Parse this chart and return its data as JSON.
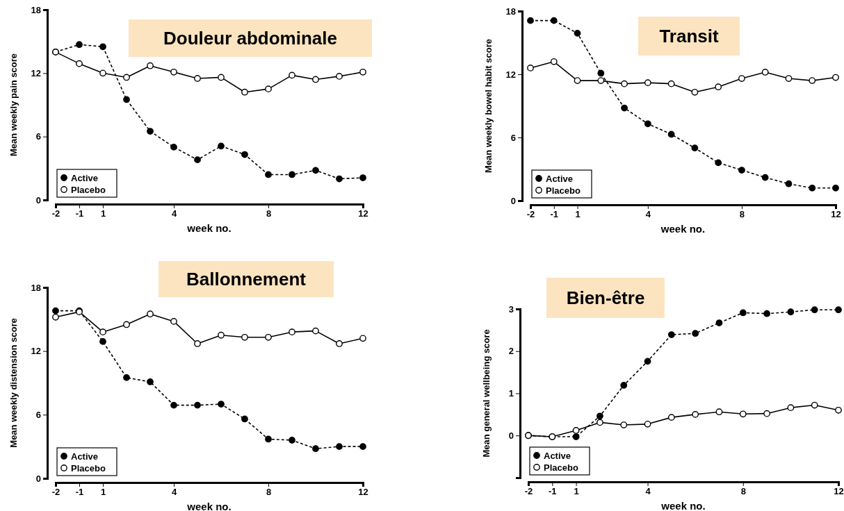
{
  "chart_data": [
    {
      "type": "line",
      "title": "Douleur abdominale",
      "xlabel": "week no.",
      "ylabel": "Mean weekly pain score",
      "categories": [
        "-2",
        "-1",
        "1",
        null,
        null,
        "4",
        null,
        null,
        null,
        "8",
        null,
        null,
        null,
        "12"
      ],
      "ylim": [
        0,
        18
      ],
      "yticks": [
        0,
        6,
        12,
        18
      ],
      "legend": "bottom left",
      "marker": "circle",
      "grid": false,
      "series": [
        {
          "name": "Active",
          "color": "#000000",
          "line_style": "dashed",
          "values": [
            14.0,
            14.7,
            14.5,
            9.5,
            6.5,
            5.0,
            3.8,
            5.1,
            4.3,
            2.4,
            2.4,
            2.8,
            2.0,
            2.1
          ]
        },
        {
          "name": "Placebo",
          "color": "#000000",
          "line_style": "solid",
          "values": [
            14.0,
            12.9,
            12.0,
            11.6,
            12.7,
            12.1,
            11.5,
            11.6,
            10.2,
            10.5,
            11.8,
            11.4,
            11.7,
            12.1
          ]
        }
      ]
    },
    {
      "type": "line",
      "title": "Transit",
      "xlabel": "week no.",
      "ylabel": "Mean weekly bowel habit score",
      "categories": [
        "-2",
        "-1",
        "1",
        null,
        null,
        "4",
        null,
        null,
        null,
        "8",
        null,
        null,
        null,
        "12"
      ],
      "ylim": [
        0,
        18
      ],
      "yticks": [
        0,
        6,
        12,
        18
      ],
      "legend": "bottom left",
      "marker": "circle",
      "grid": false,
      "series": [
        {
          "name": "Active",
          "color": "#000000",
          "line_style": "dashed",
          "values": [
            17.1,
            17.1,
            15.9,
            12.1,
            8.8,
            7.3,
            6.3,
            5.0,
            3.6,
            2.9,
            2.2,
            1.6,
            1.2,
            1.2
          ]
        },
        {
          "name": "Placebo",
          "color": "#000000",
          "line_style": "solid",
          "values": [
            12.6,
            13.2,
            11.4,
            11.4,
            11.1,
            11.2,
            11.1,
            10.3,
            10.8,
            11.6,
            12.2,
            11.6,
            11.4,
            11.7
          ]
        }
      ]
    },
    {
      "type": "line",
      "title": "Ballonnement",
      "xlabel": "week no.",
      "ylabel": "Mean weekly distension score",
      "categories": [
        "-2",
        "-1",
        "1",
        null,
        null,
        "4",
        null,
        null,
        null,
        "8",
        null,
        null,
        null,
        "12"
      ],
      "ylim": [
        0,
        18
      ],
      "yticks": [
        0,
        6,
        12,
        18
      ],
      "legend": "bottom left",
      "marker": "circle",
      "grid": false,
      "series": [
        {
          "name": "Active",
          "color": "#000000",
          "line_style": "dashed",
          "values": [
            15.8,
            15.8,
            12.9,
            9.5,
            9.1,
            6.9,
            6.9,
            7.0,
            5.6,
            3.7,
            3.6,
            2.8,
            3.0,
            3.0
          ]
        },
        {
          "name": "Placebo",
          "color": "#000000",
          "line_style": "solid",
          "values": [
            15.2,
            15.7,
            13.8,
            14.5,
            15.5,
            14.8,
            12.7,
            13.5,
            13.3,
            13.3,
            13.8,
            13.9,
            12.7,
            13.2
          ]
        }
      ]
    },
    {
      "type": "line",
      "title": "Bien-être",
      "xlabel": "week no.",
      "ylabel": "Mean general wellbeing score",
      "categories": [
        "-2",
        "-1",
        "1",
        null,
        null,
        "4",
        null,
        null,
        null,
        "8",
        null,
        null,
        null,
        "12"
      ],
      "ylim": [
        -1,
        3
      ],
      "yticks": [
        {
          "value": -1,
          "label": null
        },
        0,
        1,
        2,
        3
      ],
      "legend": "bottom left",
      "marker": "circle",
      "grid": false,
      "series": [
        {
          "name": "Active",
          "color": "#000000",
          "line_style": "dashed",
          "values": [
            0,
            -0.03,
            -0.03,
            0.46,
            1.19,
            1.76,
            2.39,
            2.42,
            2.67,
            2.91,
            2.89,
            2.93,
            2.98,
            2.98
          ]
        },
        {
          "name": "Placebo",
          "color": "#000000",
          "line_style": "solid",
          "values": [
            0,
            -0.03,
            0.12,
            0.31,
            0.25,
            0.27,
            0.43,
            0.5,
            0.56,
            0.51,
            0.52,
            0.66,
            0.72,
            0.6
          ]
        }
      ]
    }
  ]
}
